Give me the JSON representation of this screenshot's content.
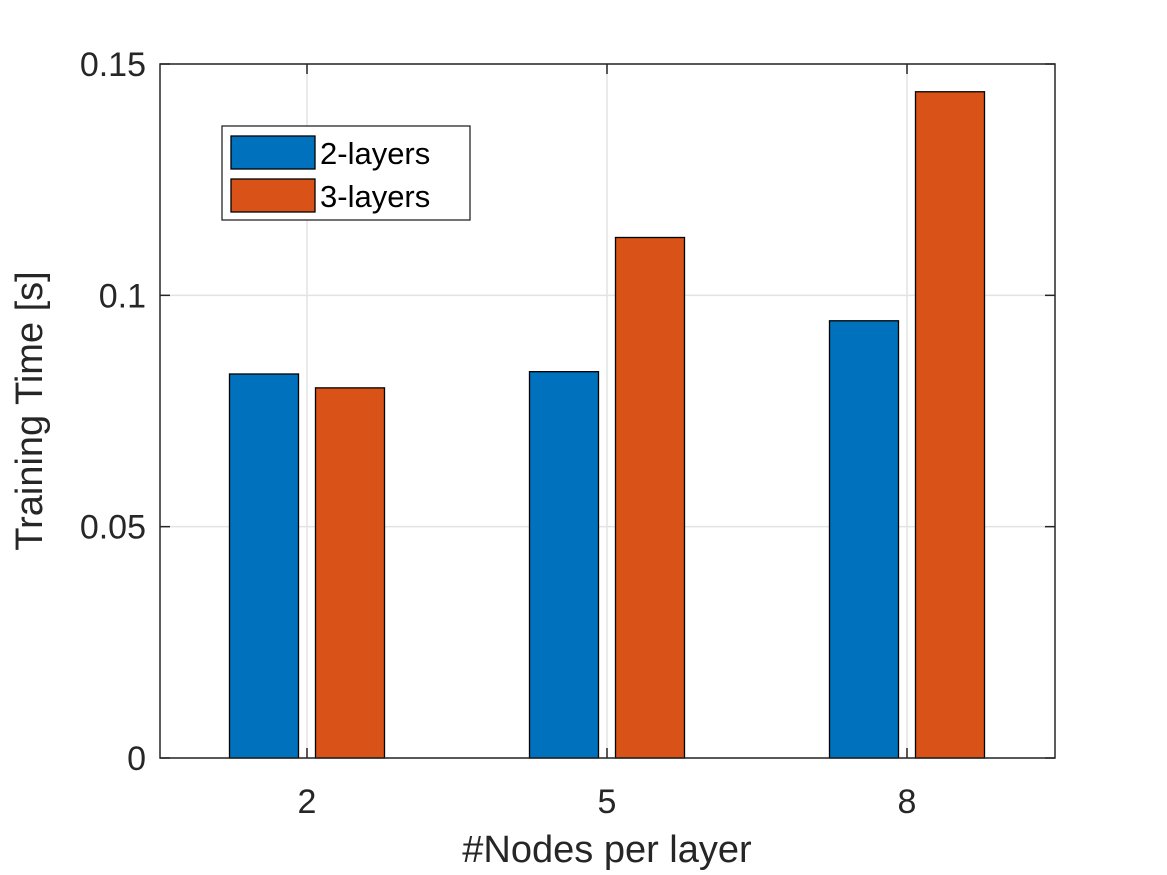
{
  "chart_data": {
    "type": "bar",
    "categories": [
      "2",
      "5",
      "8"
    ],
    "series": [
      {
        "name": "2-layers",
        "values": [
          0.083,
          0.0835,
          0.0945
        ],
        "color": "#0072BD"
      },
      {
        "name": "3-layers",
        "values": [
          0.08,
          0.1125,
          0.144
        ],
        "color": "#D95319"
      }
    ],
    "title": "",
    "xlabel": "#Nodes per layer",
    "ylabel": "Training Time [s]",
    "ylim": [
      0,
      0.15
    ],
    "yticks": [
      0,
      0.05,
      0.1,
      0.15
    ],
    "ytick_labels": [
      "0",
      "0.05",
      "0.1",
      "0.15"
    ],
    "grid": true,
    "legend_position": "top-left"
  }
}
